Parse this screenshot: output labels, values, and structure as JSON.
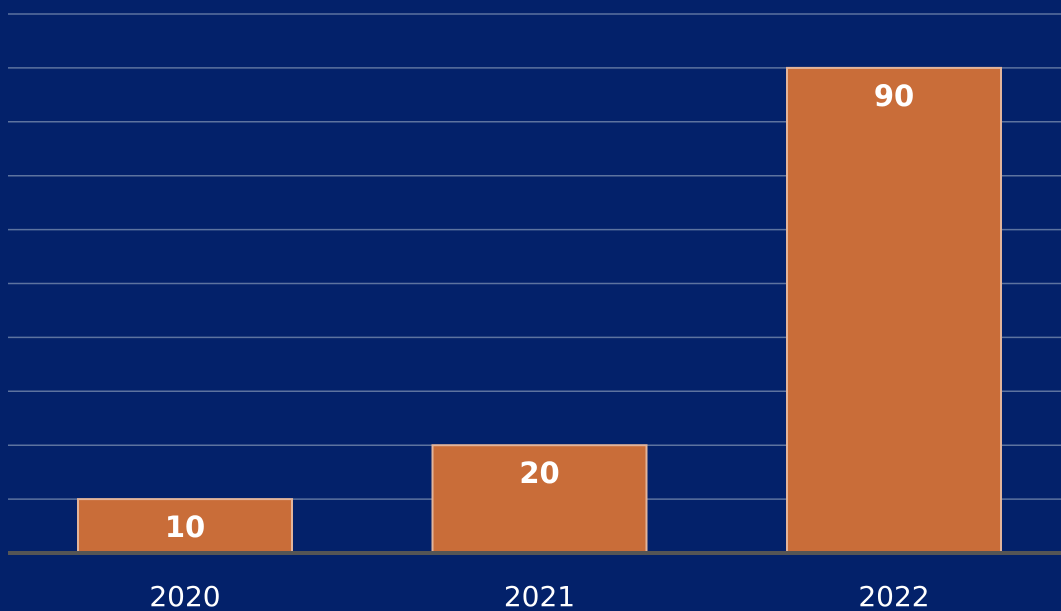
{
  "chart_data": {
    "type": "bar",
    "categories": [
      "2020",
      "2021",
      "2022"
    ],
    "values": [
      10,
      20,
      90
    ],
    "data_labels": [
      "10",
      "20",
      "90"
    ],
    "title": "",
    "xlabel": "",
    "ylabel": "",
    "ylim": [
      0,
      100
    ],
    "grid": true,
    "colors": {
      "background": "#03216a",
      "bar": "#c96d39",
      "bar_border": "#e3b49a",
      "gridline": "#5d739f",
      "baseline": "#555555",
      "text": "#ffffff"
    }
  }
}
